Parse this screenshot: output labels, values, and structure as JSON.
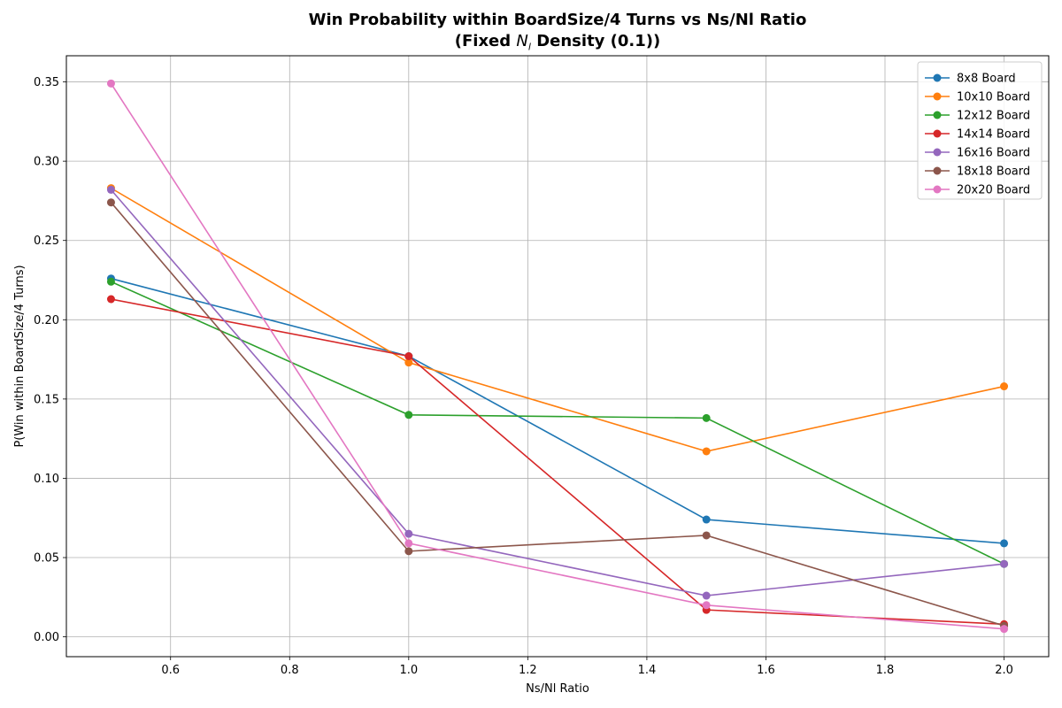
{
  "chart_data": {
    "type": "line",
    "title_line1": "Win Probability within BoardSize/4 Turns vs Ns/Nl Ratio",
    "title_line2_prefix": "(Fixed ",
    "title_line2_symbol": "N",
    "title_line2_subscript": "l",
    "title_line2_suffix": " Density (0.1))",
    "xlabel": "Ns/Nl Ratio",
    "ylabel": "P(Win within BoardSize/4 Turns)",
    "xlim": [
      0.425,
      2.075
    ],
    "ylim": [
      -0.0125,
      0.3665
    ],
    "xticks": [
      0.6,
      0.8,
      1.0,
      1.2,
      1.4,
      1.6,
      1.8,
      2.0
    ],
    "xtick_labels": [
      "0.6",
      "0.8",
      "1.0",
      "1.2",
      "1.4",
      "1.6",
      "1.8",
      "2.0"
    ],
    "yticks": [
      0.0,
      0.05,
      0.1,
      0.15,
      0.2,
      0.25,
      0.3,
      0.35
    ],
    "ytick_labels": [
      "0.00",
      "0.05",
      "0.10",
      "0.15",
      "0.20",
      "0.25",
      "0.30",
      "0.35"
    ],
    "grid": true,
    "legend_position": "top-right",
    "x": [
      0.5,
      1.0,
      1.5,
      2.0
    ],
    "series": [
      {
        "name": "8x8 Board",
        "color": "#1f77b4",
        "values": [
          0.226,
          0.177,
          0.074,
          0.059
        ]
      },
      {
        "name": "10x10 Board",
        "color": "#ff7f0e",
        "values": [
          0.283,
          0.173,
          0.117,
          0.158
        ]
      },
      {
        "name": "12x12 Board",
        "color": "#2ca02c",
        "values": [
          0.224,
          0.14,
          0.138,
          0.046
        ]
      },
      {
        "name": "14x14 Board",
        "color": "#d62728",
        "values": [
          0.213,
          0.177,
          0.017,
          0.008
        ]
      },
      {
        "name": "16x16 Board",
        "color": "#9467bd",
        "values": [
          0.282,
          0.065,
          0.026,
          0.046
        ]
      },
      {
        "name": "18x18 Board",
        "color": "#8c564b",
        "values": [
          0.274,
          0.054,
          0.064,
          0.007
        ]
      },
      {
        "name": "20x20 Board",
        "color": "#e377c2",
        "values": [
          0.349,
          0.059,
          0.02,
          0.005
        ]
      }
    ]
  }
}
